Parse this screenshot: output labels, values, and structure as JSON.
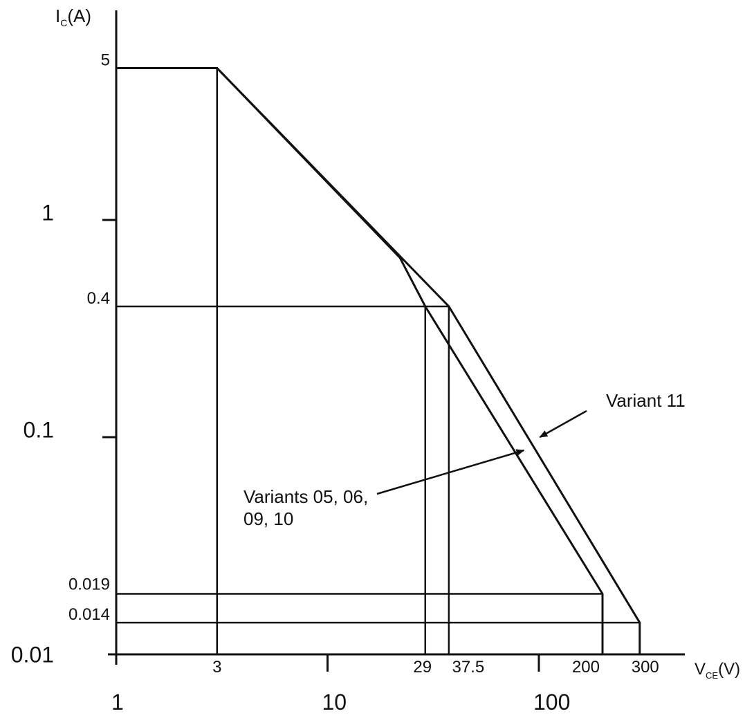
{
  "chart_data": {
    "type": "line",
    "x_scale": "log",
    "y_scale": "log",
    "xlim": [
      1,
      310
    ],
    "ylim": [
      0.01,
      5.2
    ],
    "xlabel": {
      "main": "V",
      "sub": "CE",
      "unit": "(V)"
    },
    "ylabel": {
      "main": "I",
      "sub": "C",
      "unit": "(A)"
    },
    "x_decade_ticks": [
      {
        "value": 1,
        "label": "1"
      },
      {
        "value": 10,
        "label": "10"
      },
      {
        "value": 100,
        "label": "100"
      }
    ],
    "y_decade_ticks": [
      {
        "value": 1,
        "label": "1"
      },
      {
        "value": 0.1,
        "label": "0.1"
      },
      {
        "value": 0.01,
        "label": "0.01"
      }
    ],
    "x_marks": [
      {
        "value": 3,
        "label": "3"
      },
      {
        "value": 29,
        "label": "29"
      },
      {
        "value": 37.5,
        "label": "37.5"
      },
      {
        "value": 200,
        "label": "200"
      },
      {
        "value": 300,
        "label": "300"
      }
    ],
    "y_marks": [
      {
        "value": 5,
        "label": "5"
      },
      {
        "value": 0.4,
        "label": "0.4"
      },
      {
        "value": 0.019,
        "label": "0.019"
      },
      {
        "value": 0.014,
        "label": "0.014"
      }
    ],
    "series": [
      {
        "name": "Variant 11",
        "points": [
          [
            1,
            5
          ],
          [
            3,
            5
          ],
          [
            37.5,
            0.4
          ],
          [
            300,
            0.014
          ],
          [
            300,
            0.01
          ]
        ]
      },
      {
        "name": "Variants 05, 06, 09, 10",
        "points": [
          [
            1,
            5
          ],
          [
            3,
            5
          ],
          [
            22,
            0.67
          ],
          [
            29,
            0.4
          ],
          [
            200,
            0.019
          ],
          [
            200,
            0.01
          ]
        ]
      }
    ],
    "guides": [
      {
        "from": [
          3,
          5
        ],
        "to": [
          3,
          0.01
        ]
      },
      {
        "from": [
          1,
          0.4
        ],
        "to": [
          37.5,
          0.4
        ]
      },
      {
        "from": [
          29,
          0.4
        ],
        "to": [
          29,
          0.01
        ]
      },
      {
        "from": [
          37.5,
          0.4
        ],
        "to": [
          37.5,
          0.01
        ]
      },
      {
        "from": [
          1,
          0.019
        ],
        "to": [
          200,
          0.019
        ]
      },
      {
        "from": [
          1,
          0.014
        ],
        "to": [
          300,
          0.014
        ]
      }
    ],
    "annotations": [
      {
        "target_series": "Variant 11",
        "lines": [
          "Variant 11"
        ],
        "arrow_to": [
          101,
          0.1
        ]
      },
      {
        "target_series": "Variants 05, 06, 09, 10",
        "lines": [
          "Variants 05, 06,",
          "09, 10"
        ],
        "arrow_to": [
          85,
          0.087
        ]
      }
    ]
  }
}
